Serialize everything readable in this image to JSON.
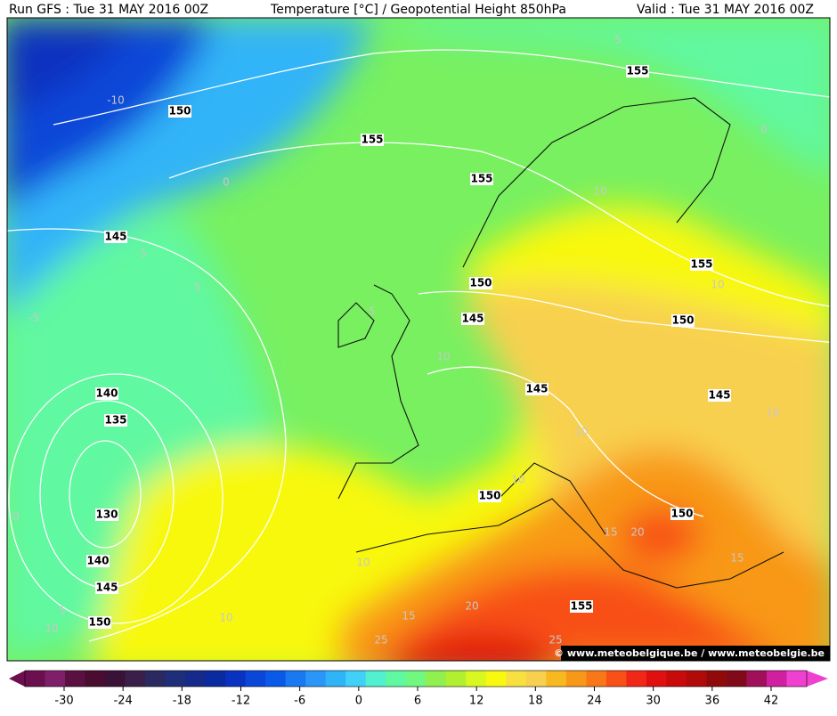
{
  "header": {
    "left": "Run GFS : Tue 31 MAY 2016 00Z",
    "center": "Temperature [°C] / Geopotential Height 850hPa",
    "right": "Valid : Tue 31 MAY 2016 00Z"
  },
  "credit": "© www.meteobelgique.be / www.meteobelgie.be",
  "height_labels": [
    150,
    155,
    155,
    155,
    145,
    150,
    155,
    145,
    150,
    145,
    145,
    140,
    135,
    130,
    150,
    150,
    140,
    145,
    150,
    155
  ],
  "temperature_labels": [
    5,
    -10,
    0,
    0,
    10,
    5,
    5,
    10,
    -5,
    5,
    10,
    10,
    10,
    10,
    0,
    15,
    20,
    15,
    10,
    5,
    10,
    10,
    15,
    20,
    25,
    25
  ],
  "colorbar": {
    "ticks": [
      -30,
      -24,
      -18,
      -12,
      -6,
      0,
      6,
      12,
      18,
      24,
      30,
      36,
      42
    ],
    "colors": [
      "#6b0f4f",
      "#7f1f6a",
      "#5a1040",
      "#4a0c30",
      "#3a1238",
      "#3a1f4a",
      "#2a2a60",
      "#1e2e78",
      "#152a8a",
      "#0a2aa0",
      "#0a32c0",
      "#0a46d8",
      "#0a5ae8",
      "#1a78f0",
      "#2a96f8",
      "#30b4f8",
      "#40d0f8",
      "#50f0d0",
      "#60f8a0",
      "#70f880",
      "#90f050",
      "#b0f030",
      "#d8f820",
      "#f8f810",
      "#f8e040",
      "#f8d050",
      "#f8b820",
      "#f89818",
      "#f87818",
      "#f85018",
      "#f02818",
      "#e01010",
      "#c80a0a",
      "#b00a0a",
      "#900a0a",
      "#800a1a",
      "#a0105a",
      "#d020a0",
      "#f040d0"
    ]
  }
}
